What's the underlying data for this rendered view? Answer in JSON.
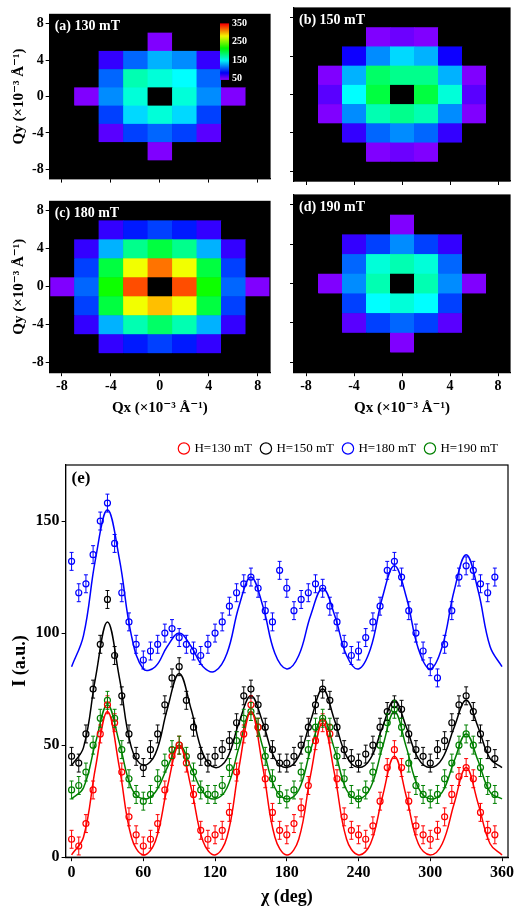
{
  "chart_data": [
    {
      "type": "heatmap",
      "title": "(a) 130 mT",
      "y_label": "Qy (×10⁻³ Å⁻¹)",
      "tick_labels": "y",
      "xlim": [
        -9,
        9
      ],
      "ylim": [
        -9,
        9
      ],
      "xticks": [
        -8,
        -4,
        0,
        4,
        8
      ],
      "yticks": [
        -8,
        -4,
        0,
        4,
        8
      ],
      "x": [
        -8,
        -6,
        -4,
        -2,
        0,
        2,
        4,
        6,
        8
      ],
      "y": [
        8,
        6,
        4,
        2,
        0,
        -2,
        -4,
        -6,
        -8
      ],
      "cells": [
        [
          20,
          20,
          20,
          20,
          20,
          20,
          20,
          20,
          20
        ],
        [
          20,
          30,
          40,
          45,
          50,
          45,
          40,
          30,
          20
        ],
        [
          20,
          40,
          70,
          110,
          130,
          120,
          70,
          40,
          20
        ],
        [
          30,
          45,
          110,
          170,
          160,
          150,
          110,
          45,
          30
        ],
        [
          30,
          50,
          120,
          160,
          null,
          160,
          120,
          50,
          30
        ],
        [
          30,
          45,
          100,
          140,
          160,
          140,
          100,
          45,
          30
        ],
        [
          20,
          40,
          60,
          100,
          110,
          100,
          60,
          40,
          20
        ],
        [
          20,
          30,
          40,
          45,
          50,
          45,
          40,
          30,
          20
        ],
        [
          20,
          20,
          20,
          20,
          20,
          20,
          20,
          20,
          20
        ]
      ],
      "colorbar": {
        "range": [
          50,
          350
        ],
        "ticks": [
          50,
          150,
          250,
          350
        ]
      }
    },
    {
      "type": "heatmap",
      "title": "(b) 150 mT",
      "tick_labels": false,
      "xlim": [
        -9,
        9
      ],
      "ylim": [
        -9,
        9
      ],
      "xticks": [
        -8,
        -4,
        0,
        4,
        8
      ],
      "yticks": [
        -8,
        -4,
        0,
        4,
        8
      ],
      "x": [
        -8,
        -6,
        -4,
        -2,
        0,
        2,
        4,
        6,
        8
      ],
      "y": [
        8,
        6,
        4,
        2,
        0,
        -2,
        -4,
        -6,
        -8
      ],
      "cells": [
        [
          20,
          20,
          20,
          20,
          20,
          20,
          20,
          20,
          20
        ],
        [
          20,
          30,
          45,
          50,
          55,
          50,
          45,
          30,
          20
        ],
        [
          20,
          40,
          80,
          120,
          140,
          130,
          80,
          40,
          20
        ],
        [
          30,
          50,
          130,
          190,
          180,
          180,
          130,
          50,
          30
        ],
        [
          30,
          60,
          150,
          200,
          null,
          200,
          160,
          60,
          30
        ],
        [
          30,
          50,
          120,
          170,
          180,
          170,
          120,
          50,
          30
        ],
        [
          20,
          40,
          70,
          110,
          120,
          110,
          70,
          40,
          20
        ],
        [
          20,
          30,
          45,
          50,
          55,
          50,
          45,
          30,
          20
        ],
        [
          20,
          20,
          20,
          20,
          20,
          20,
          20,
          20,
          20
        ]
      ]
    },
    {
      "type": "heatmap",
      "title": "(c) 180 mT",
      "x_label": "Qx (×10⁻³ Å⁻¹)",
      "y_label": "Qy (×10⁻³ Å⁻¹)",
      "tick_labels": true,
      "xlim": [
        -9,
        9
      ],
      "ylim": [
        -9,
        9
      ],
      "xticks": [
        -8,
        -4,
        0,
        4,
        8
      ],
      "yticks": [
        -8,
        -4,
        0,
        4,
        8
      ],
      "x": [
        -8,
        -6,
        -4,
        -2,
        0,
        2,
        4,
        6,
        8
      ],
      "y": [
        8,
        6,
        4,
        2,
        0,
        -2,
        -4,
        -6,
        -8
      ],
      "cells": [
        [
          20,
          25,
          30,
          35,
          40,
          35,
          30,
          25,
          20
        ],
        [
          30,
          45,
          70,
          90,
          100,
          90,
          70,
          45,
          30
        ],
        [
          40,
          70,
          130,
          180,
          200,
          180,
          130,
          70,
          40
        ],
        [
          45,
          100,
          200,
          280,
          320,
          280,
          200,
          100,
          45
        ],
        [
          50,
          110,
          220,
          330,
          null,
          330,
          220,
          110,
          50
        ],
        [
          45,
          100,
          200,
          280,
          300,
          280,
          200,
          100,
          45
        ],
        [
          40,
          70,
          130,
          170,
          190,
          170,
          130,
          70,
          40
        ],
        [
          30,
          45,
          70,
          90,
          100,
          90,
          70,
          45,
          30
        ],
        [
          20,
          25,
          30,
          35,
          40,
          35,
          30,
          25,
          20
        ]
      ]
    },
    {
      "type": "heatmap",
      "title": "(d) 190 mT",
      "x_label": "Qx (×10⁻³ Å⁻¹)",
      "tick_labels": "x",
      "xlim": [
        -9,
        9
      ],
      "ylim": [
        -9,
        9
      ],
      "xticks": [
        -8,
        -4,
        0,
        4,
        8
      ],
      "yticks": [
        -8,
        -4,
        0,
        4,
        8
      ],
      "x": [
        -8,
        -6,
        -4,
        -2,
        0,
        2,
        4,
        6,
        8
      ],
      "y": [
        8,
        6,
        4,
        2,
        0,
        -2,
        -4,
        -6,
        -8
      ],
      "cells": [
        [
          20,
          20,
          20,
          20,
          20,
          20,
          20,
          20,
          20
        ],
        [
          20,
          30,
          40,
          45,
          50,
          45,
          40,
          30,
          20
        ],
        [
          20,
          40,
          70,
          100,
          120,
          100,
          70,
          40,
          20
        ],
        [
          30,
          45,
          110,
          160,
          170,
          160,
          110,
          45,
          30
        ],
        [
          30,
          50,
          120,
          170,
          null,
          170,
          120,
          50,
          30
        ],
        [
          30,
          45,
          100,
          150,
          160,
          150,
          100,
          45,
          30
        ],
        [
          20,
          40,
          60,
          100,
          110,
          100,
          60,
          40,
          20
        ],
        [
          20,
          30,
          40,
          45,
          50,
          45,
          40,
          30,
          20
        ],
        [
          20,
          20,
          20,
          20,
          20,
          20,
          20,
          20,
          20
        ]
      ]
    },
    {
      "type": "scatter",
      "title": "(e)",
      "x_label": "χ (deg)",
      "y_label": "I (a.u.)",
      "xlim": [
        -5,
        365
      ],
      "ylim": [
        0,
        175
      ],
      "xticks": [
        0,
        60,
        120,
        180,
        240,
        300,
        360
      ],
      "yticks": [
        0,
        50,
        100,
        150
      ],
      "grid": false,
      "legend": "top-right",
      "marker": "circle",
      "line_style": "solid",
      "x": [
        0,
        6,
        12,
        18,
        24,
        30,
        36,
        42,
        48,
        54,
        60,
        66,
        72,
        78,
        84,
        90,
        96,
        102,
        108,
        114,
        120,
        126,
        132,
        138,
        144,
        150,
        156,
        162,
        168,
        174,
        180,
        186,
        192,
        198,
        204,
        210,
        216,
        222,
        228,
        234,
        240,
        246,
        252,
        258,
        264,
        270,
        276,
        282,
        288,
        294,
        300,
        306,
        312,
        318,
        324,
        330,
        336,
        342,
        348,
        354
      ],
      "fit_x": [
        0,
        10,
        20,
        30,
        40,
        50,
        60,
        70,
        80,
        90,
        100,
        110,
        120,
        130,
        140,
        150,
        160,
        170,
        180,
        190,
        200,
        210,
        220,
        230,
        240,
        250,
        260,
        270,
        280,
        290,
        300,
        310,
        320,
        330,
        340,
        350,
        360
      ],
      "series": [
        {
          "name": "H=130 mT",
          "color": "#ff0000",
          "error": 4,
          "values": [
            8,
            5,
            15,
            30,
            55,
            68,
            60,
            38,
            18,
            10,
            5,
            8,
            15,
            30,
            45,
            50,
            42,
            28,
            12,
            8,
            10,
            12,
            20,
            38,
            55,
            68,
            58,
            35,
            20,
            12,
            10,
            15,
            22,
            32,
            52,
            60,
            55,
            35,
            18,
            12,
            10,
            8,
            14,
            25,
            40,
            48,
            40,
            25,
            14,
            10,
            8,
            12,
            18,
            28,
            36,
            40,
            35,
            20,
            12,
            10
          ],
          "fit": [
            1,
            9,
            40,
            65,
            40,
            9,
            1,
            7,
            31,
            50,
            31,
            7,
            1,
            9,
            40,
            65,
            40,
            9,
            1,
            8,
            37,
            60,
            37,
            8,
            1,
            6,
            27,
            45,
            27,
            6,
            1,
            6,
            24,
            40,
            24,
            6,
            1
          ]
        },
        {
          "name": "H=150 mT",
          "color": "#000000",
          "error": 4,
          "values": [
            45,
            42,
            55,
            75,
            95,
            115,
            90,
            72,
            55,
            45,
            40,
            48,
            55,
            68,
            80,
            85,
            70,
            58,
            45,
            42,
            45,
            48,
            52,
            60,
            72,
            75,
            68,
            58,
            48,
            42,
            42,
            45,
            50,
            58,
            68,
            75,
            70,
            58,
            48,
            44,
            42,
            46,
            50,
            58,
            65,
            68,
            66,
            55,
            48,
            45,
            42,
            48,
            52,
            60,
            68,
            72,
            65,
            55,
            48,
            44
          ],
          "fit": [
            41,
            49,
            80,
            105,
            80,
            49,
            41,
            46,
            66,
            82,
            66,
            46,
            40,
            44,
            60,
            72,
            60,
            44,
            40,
            45,
            61,
            75,
            61,
            45,
            40,
            44,
            58,
            70,
            58,
            44,
            40,
            44,
            58,
            70,
            58,
            44,
            40
          ]
        },
        {
          "name": "H=180 mT",
          "color": "#0000ff",
          "error": 4,
          "values": [
            132,
            118,
            122,
            135,
            150,
            158,
            140,
            118,
            105,
            95,
            88,
            92,
            95,
            100,
            102,
            98,
            95,
            92,
            90,
            95,
            100,
            105,
            112,
            118,
            122,
            125,
            120,
            110,
            105,
            128,
            120,
            110,
            115,
            118,
            122,
            120,
            112,
            105,
            95,
            90,
            92,
            98,
            105,
            112,
            128,
            132,
            125,
            110,
            100,
            92,
            85,
            80,
            95,
            110,
            125,
            130,
            128,
            122,
            118,
            125
          ],
          "fit": [
            85,
            99,
            133,
            155,
            133,
            99,
            84,
            85,
            94,
            100,
            94,
            85,
            83,
            91,
            112,
            125,
            112,
            91,
            84,
            90,
            108,
            120,
            108,
            90,
            84,
            93,
            116,
            130,
            116,
            93,
            84,
            94,
            119,
            135,
            119,
            94,
            85
          ]
        },
        {
          "name": "H=190 mT",
          "color": "#008000",
          "error": 4,
          "values": [
            30,
            32,
            38,
            50,
            62,
            70,
            62,
            48,
            35,
            28,
            25,
            28,
            35,
            42,
            48,
            50,
            45,
            38,
            30,
            28,
            28,
            32,
            40,
            52,
            62,
            65,
            58,
            45,
            35,
            28,
            26,
            30,
            38,
            48,
            58,
            62,
            58,
            45,
            35,
            28,
            26,
            30,
            38,
            50,
            60,
            66,
            58,
            42,
            32,
            28,
            26,
            28,
            35,
            42,
            50,
            55,
            50,
            40,
            32,
            28
          ],
          "fit": [
            26,
            31,
            51,
            68,
            51,
            31,
            26,
            29,
            40,
            50,
            40,
            29,
            26,
            31,
            49,
            65,
            49,
            31,
            26,
            30,
            48,
            62,
            48,
            30,
            26,
            31,
            49,
            65,
            49,
            31,
            26,
            29,
            43,
            55,
            43,
            29,
            26
          ]
        }
      ]
    }
  ]
}
